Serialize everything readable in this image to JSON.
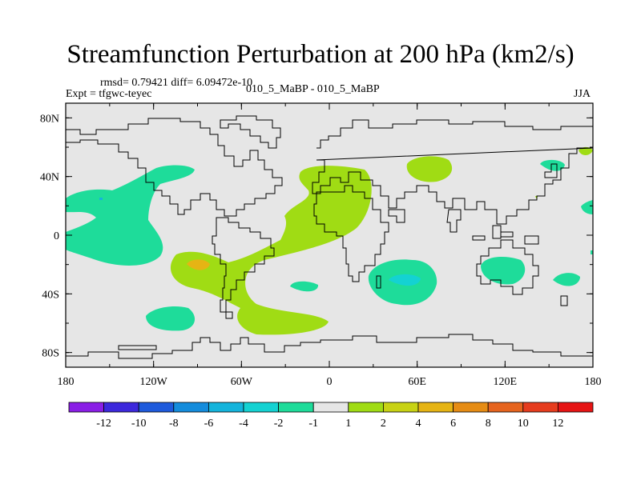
{
  "chart_data": {
    "type": "filled-contour map",
    "title": "Streamfunction Perturbation at 200 hPa (km2/s)",
    "stats_text": "rmsd= 0.79421 diff= 6.09472e-10",
    "left_label": "Expt = tfgwc-teyec",
    "center_label": "010_5_MaBP - 010_5_MaBP",
    "right_label": "JJA",
    "x_ticks": [
      "180",
      "120W",
      "60W",
      "0",
      "60E",
      "120E",
      "180"
    ],
    "y_ticks": [
      "80N",
      "40N",
      "0",
      "40S",
      "80S"
    ],
    "xlim": [
      -180,
      180
    ],
    "ylim": [
      -90,
      90
    ],
    "colorbar": {
      "labels": [
        "-12",
        "-10",
        "-8",
        "-6",
        "-4",
        "-2",
        "-1",
        "1",
        "2",
        "4",
        "6",
        "8",
        "10",
        "12"
      ],
      "colors": [
        "#8a1ee6",
        "#3c28dc",
        "#1e5adc",
        "#148cdc",
        "#14b4dc",
        "#14d2d2",
        "#1edc9a",
        "#e6e6e6",
        "#a0dc14",
        "#c8d214",
        "#e6b414",
        "#e68c14",
        "#e6641e",
        "#e63c1e",
        "#e61414"
      ]
    }
  }
}
